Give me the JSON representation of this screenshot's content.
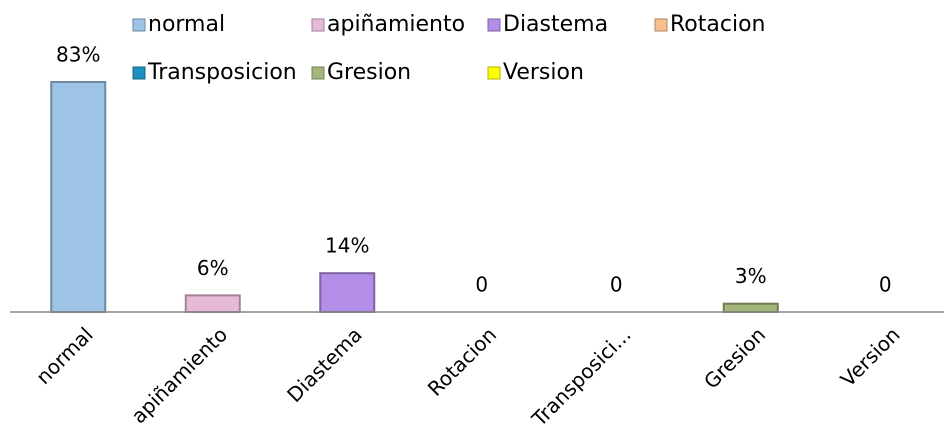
{
  "chart_data": {
    "type": "bar",
    "categories": [
      "normal",
      "apiñamiento",
      "Diastema",
      "Rotacion",
      "Transposici...",
      "Gresion",
      "Version"
    ],
    "legend": [
      "normal",
      "apiñamiento",
      "Diastema",
      "Rotacion",
      "Transposicion",
      "Gresion",
      "Version"
    ],
    "values": [
      83,
      6,
      14,
      0,
      0,
      3,
      0
    ],
    "value_labels": [
      "83%",
      "6%",
      "14%",
      "0",
      "0",
      "3%",
      "0"
    ],
    "colors": [
      "#9dc3e6",
      "#e6b9d8",
      "#b38ee8",
      "#f9c08f",
      "#1f8fc0",
      "#a3b57a",
      "#ffff00"
    ]
  }
}
